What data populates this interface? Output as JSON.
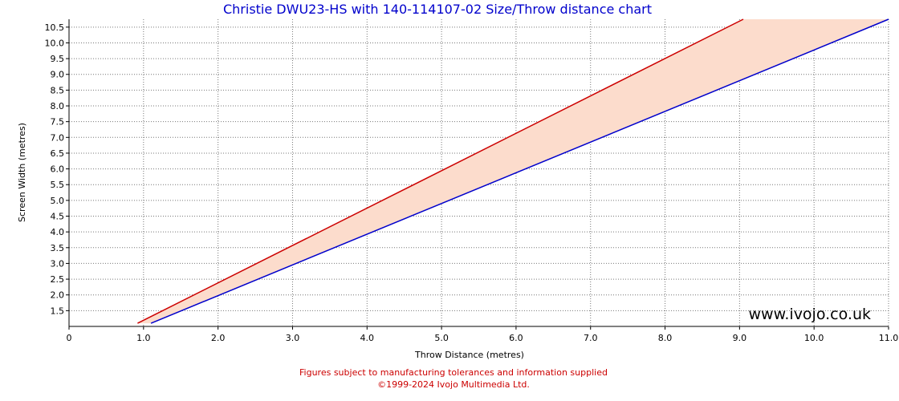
{
  "chart_data": {
    "type": "line",
    "title": "Christie DWU23-HS with 140-114107-02 Size/Throw distance chart",
    "xlabel": "Throw Distance (metres)",
    "ylabel": "Screen Width (metres)",
    "xlim": [
      0,
      11.0
    ],
    "ylim": [
      1.0,
      10.75
    ],
    "x_ticks": [
      "0",
      "1.0",
      "2.0",
      "3.0",
      "4.0",
      "5.0",
      "6.0",
      "7.0",
      "8.0",
      "9.0",
      "10.0",
      "11.0"
    ],
    "y_ticks": [
      "1.5",
      "2.0",
      "2.5",
      "3.0",
      "3.5",
      "4.0",
      "4.5",
      "5.0",
      "5.5",
      "6.0",
      "6.5",
      "7.0",
      "7.5",
      "8.0",
      "8.5",
      "9.0",
      "9.5",
      "10.0",
      "10.5"
    ],
    "grid": true,
    "series": [
      {
        "color": "#cc0000",
        "points": [
          [
            0.92,
            1.1
          ],
          [
            9.05,
            10.75
          ]
        ]
      },
      {
        "color": "#0000cc",
        "points": [
          [
            1.1,
            1.1
          ],
          [
            11.0,
            10.75
          ]
        ]
      }
    ],
    "band_fill": "#fcdccc",
    "watermark": "www.ivojo.co.uk",
    "footer": {
      "line1": "Figures subject to manufacturing tolerances and information supplied",
      "line2": "©1999-2024 Ivojo Multimedia Ltd."
    }
  }
}
